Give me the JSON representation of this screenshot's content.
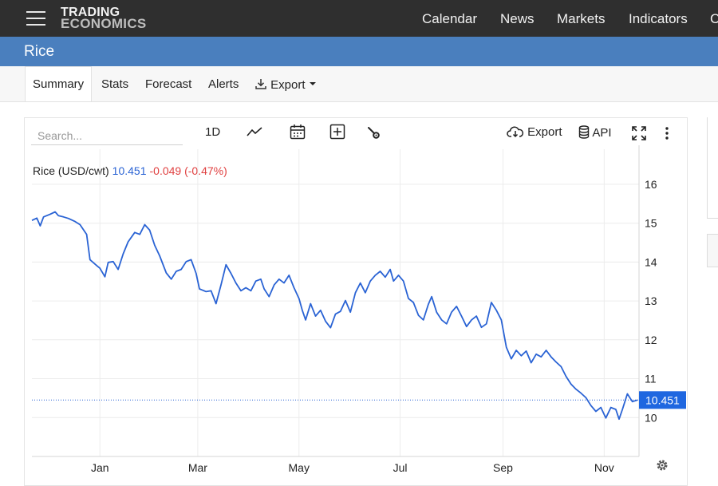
{
  "nav": {
    "logo_line1": "TRADING",
    "logo_line2": "ECONOMICS",
    "items": [
      "Calendar",
      "News",
      "Markets",
      "Indicators",
      "C"
    ]
  },
  "page": {
    "title": "Rice"
  },
  "tabs": [
    "Summary",
    "Stats",
    "Forecast",
    "Alerts",
    "Export"
  ],
  "toolbar": {
    "search_placeholder": "Search...",
    "interval": "1D",
    "export": "Export",
    "api": "API"
  },
  "legend": {
    "name": "Rice (USD/cwt)",
    "value": "10.451",
    "change": "-0.049 (-0.47%)"
  },
  "colors": {
    "line": "#2a63d4",
    "change": "#e04040",
    "header": "#4a7fbe",
    "topbar": "#2f2f2f"
  },
  "chart_data": {
    "type": "line",
    "title": "Rice (USD/cwt)",
    "xlabel": "",
    "ylabel": "",
    "ylim": [
      9.0,
      16.9
    ],
    "yticks": [
      10,
      11,
      12,
      13,
      14,
      15,
      16
    ],
    "xticks": [
      {
        "label": "Jan",
        "date": "2025-01-01"
      },
      {
        "label": "Mar",
        "date": "2025-03-01"
      },
      {
        "label": "May",
        "date": "2025-05-01"
      },
      {
        "label": "Jul",
        "date": "2025-07-01"
      },
      {
        "label": "Sep",
        "date": "2025-09-01"
      },
      {
        "label": "Nov",
        "date": "2025-11-01"
      }
    ],
    "xlim": [
      "2024-11-21",
      "2025-11-22"
    ],
    "last_value": 10.451,
    "series": [
      {
        "name": "Rice (USD/cwt)",
        "points": [
          [
            "2024-11-21",
            15.07
          ],
          [
            "2024-11-24",
            15.13
          ],
          [
            "2024-11-26",
            14.93
          ],
          [
            "2024-11-28",
            15.16
          ],
          [
            "2024-12-02",
            15.23
          ],
          [
            "2024-12-05",
            15.29
          ],
          [
            "2024-12-07",
            15.19
          ],
          [
            "2024-12-10",
            15.16
          ],
          [
            "2024-12-13",
            15.12
          ],
          [
            "2024-12-17",
            15.04
          ],
          [
            "2024-12-20",
            14.96
          ],
          [
            "2024-12-24",
            14.71
          ],
          [
            "2024-12-26",
            14.06
          ],
          [
            "2024-12-30",
            13.91
          ],
          [
            "2025-01-01",
            13.84
          ],
          [
            "2025-01-04",
            13.62
          ],
          [
            "2025-01-06",
            13.99
          ],
          [
            "2025-01-09",
            14.01
          ],
          [
            "2025-01-12",
            13.81
          ],
          [
            "2025-01-15",
            14.21
          ],
          [
            "2025-01-18",
            14.52
          ],
          [
            "2025-01-22",
            14.76
          ],
          [
            "2025-01-25",
            14.71
          ],
          [
            "2025-01-28",
            14.96
          ],
          [
            "2025-01-31",
            14.82
          ],
          [
            "2025-02-03",
            14.43
          ],
          [
            "2025-02-06",
            14.16
          ],
          [
            "2025-02-10",
            13.72
          ],
          [
            "2025-02-13",
            13.56
          ],
          [
            "2025-02-16",
            13.76
          ],
          [
            "2025-02-19",
            13.81
          ],
          [
            "2025-02-22",
            14.01
          ],
          [
            "2025-02-25",
            14.06
          ],
          [
            "2025-02-28",
            13.71
          ],
          [
            "2025-03-02",
            13.31
          ],
          [
            "2025-03-06",
            13.24
          ],
          [
            "2025-03-09",
            13.26
          ],
          [
            "2025-03-12",
            12.93
          ],
          [
            "2025-03-15",
            13.41
          ],
          [
            "2025-03-18",
            13.93
          ],
          [
            "2025-03-21",
            13.71
          ],
          [
            "2025-03-24",
            13.46
          ],
          [
            "2025-03-27",
            13.26
          ],
          [
            "2025-03-30",
            13.34
          ],
          [
            "2025-04-02",
            13.26
          ],
          [
            "2025-04-05",
            13.51
          ],
          [
            "2025-04-08",
            13.56
          ],
          [
            "2025-04-10",
            13.31
          ],
          [
            "2025-04-13",
            13.11
          ],
          [
            "2025-04-16",
            13.41
          ],
          [
            "2025-04-19",
            13.56
          ],
          [
            "2025-04-22",
            13.46
          ],
          [
            "2025-04-25",
            13.66
          ],
          [
            "2025-04-28",
            13.34
          ],
          [
            "2025-05-01",
            13.06
          ],
          [
            "2025-05-03",
            12.76
          ],
          [
            "2025-05-05",
            12.51
          ],
          [
            "2025-05-08",
            12.93
          ],
          [
            "2025-05-11",
            12.61
          ],
          [
            "2025-05-14",
            12.76
          ],
          [
            "2025-05-17",
            12.48
          ],
          [
            "2025-05-20",
            12.31
          ],
          [
            "2025-05-23",
            12.66
          ],
          [
            "2025-05-26",
            12.73
          ],
          [
            "2025-05-29",
            13.01
          ],
          [
            "2025-06-01",
            12.71
          ],
          [
            "2025-06-04",
            13.21
          ],
          [
            "2025-06-07",
            13.46
          ],
          [
            "2025-06-10",
            13.21
          ],
          [
            "2025-06-13",
            13.51
          ],
          [
            "2025-06-16",
            13.66
          ],
          [
            "2025-06-19",
            13.76
          ],
          [
            "2025-06-22",
            13.61
          ],
          [
            "2025-06-25",
            13.81
          ],
          [
            "2025-06-27",
            13.51
          ],
          [
            "2025-06-30",
            13.66
          ],
          [
            "2025-07-03",
            13.51
          ],
          [
            "2025-07-06",
            13.06
          ],
          [
            "2025-07-09",
            12.96
          ],
          [
            "2025-07-12",
            12.63
          ],
          [
            "2025-07-15",
            12.51
          ],
          [
            "2025-07-18",
            12.91
          ],
          [
            "2025-07-20",
            13.11
          ],
          [
            "2025-07-23",
            12.71
          ],
          [
            "2025-07-26",
            12.51
          ],
          [
            "2025-07-29",
            12.41
          ],
          [
            "2025-08-01",
            12.71
          ],
          [
            "2025-08-04",
            12.86
          ],
          [
            "2025-08-07",
            12.61
          ],
          [
            "2025-08-10",
            12.34
          ],
          [
            "2025-08-13",
            12.51
          ],
          [
            "2025-08-16",
            12.61
          ],
          [
            "2025-08-19",
            12.32
          ],
          [
            "2025-08-22",
            12.41
          ],
          [
            "2025-08-25",
            12.96
          ],
          [
            "2025-08-28",
            12.76
          ],
          [
            "2025-08-31",
            12.51
          ],
          [
            "2025-09-03",
            11.81
          ],
          [
            "2025-09-06",
            11.51
          ],
          [
            "2025-09-09",
            11.73
          ],
          [
            "2025-09-12",
            11.59
          ],
          [
            "2025-09-15",
            11.71
          ],
          [
            "2025-09-18",
            11.41
          ],
          [
            "2025-09-21",
            11.63
          ],
          [
            "2025-09-24",
            11.56
          ],
          [
            "2025-09-27",
            11.73
          ],
          [
            "2025-09-30",
            11.56
          ],
          [
            "2025-10-03",
            11.43
          ],
          [
            "2025-10-06",
            11.31
          ],
          [
            "2025-10-09",
            11.06
          ],
          [
            "2025-10-12",
            10.86
          ],
          [
            "2025-10-15",
            10.73
          ],
          [
            "2025-10-18",
            10.63
          ],
          [
            "2025-10-21",
            10.51
          ],
          [
            "2025-10-24",
            10.31
          ],
          [
            "2025-10-27",
            10.16
          ],
          [
            "2025-10-30",
            10.26
          ],
          [
            "2025-11-02",
            9.99
          ],
          [
            "2025-11-05",
            10.26
          ],
          [
            "2025-11-08",
            10.21
          ],
          [
            "2025-11-10",
            9.96
          ],
          [
            "2025-11-12",
            10.21
          ],
          [
            "2025-11-15",
            10.61
          ],
          [
            "2025-11-18",
            10.41
          ],
          [
            "2025-11-21",
            10.451
          ]
        ]
      }
    ],
    "grid": true
  }
}
